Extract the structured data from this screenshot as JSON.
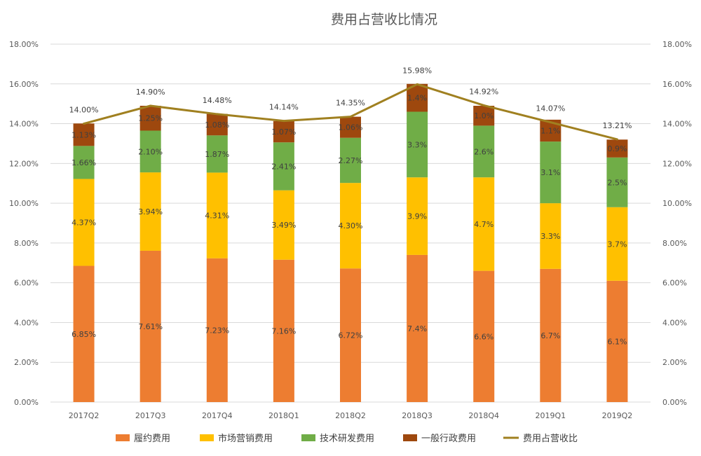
{
  "chart_data": {
    "type": "bar",
    "stacked": true,
    "title": "费用占营收比情况",
    "categories": [
      "2017Q2",
      "2017Q3",
      "2017Q4",
      "2018Q1",
      "2018Q2",
      "2018Q3",
      "2018Q4",
      "2019Q1",
      "2019Q2"
    ],
    "ylim": [
      0,
      18
    ],
    "y_ticks": [
      "0.00%",
      "2.00%",
      "4.00%",
      "6.00%",
      "8.00%",
      "10.00%",
      "12.00%",
      "14.00%",
      "16.00%",
      "18.00%"
    ],
    "y_tick_values": [
      0,
      2,
      4,
      6,
      8,
      10,
      12,
      14,
      16,
      18
    ],
    "grid": true,
    "legend_position": "bottom",
    "series": [
      {
        "name": "履约费用",
        "color": "#ED7D31",
        "values": [
          6.85,
          7.61,
          7.23,
          7.16,
          6.72,
          7.4,
          6.6,
          6.7,
          6.1
        ],
        "labels": [
          "6.85%",
          "7.61%",
          "7.23%",
          "7.16%",
          "6.72%",
          "7.4%",
          "6.6%",
          "6.7%",
          "6.1%"
        ]
      },
      {
        "name": "市场营销费用",
        "color": "#FFC000",
        "values": [
          4.37,
          3.94,
          4.31,
          3.49,
          4.3,
          3.9,
          4.7,
          3.3,
          3.7
        ],
        "labels": [
          "4.37%",
          "3.94%",
          "4.31%",
          "3.49%",
          "4.30%",
          "3.9%",
          "4.7%",
          "3.3%",
          "3.7%"
        ]
      },
      {
        "name": "技术研发费用",
        "color": "#70AD47",
        "values": [
          1.66,
          2.1,
          1.87,
          2.41,
          2.27,
          3.3,
          2.6,
          3.1,
          2.5
        ],
        "labels": [
          "1.66%",
          "2.10%",
          "1.87%",
          "2.41%",
          "2.27%",
          "3.3%",
          "2.6%",
          "3.1%",
          "2.5%"
        ]
      },
      {
        "name": "一般行政费用",
        "color": "#9E480E",
        "values": [
          1.13,
          1.25,
          1.08,
          1.07,
          1.06,
          1.4,
          1.0,
          1.1,
          0.9
        ],
        "labels": [
          "1.13%",
          "1.25%",
          "1.08%",
          "1.07%",
          "1.06%",
          "1.4%",
          "1.0%",
          "1.1%",
          "0.9%"
        ]
      }
    ],
    "line": {
      "name": "费用占营收比",
      "color": "#A08020",
      "values": [
        14.0,
        14.9,
        14.48,
        14.14,
        14.35,
        15.98,
        14.92,
        14.07,
        13.21
      ],
      "labels": [
        "14.00%",
        "14.90%",
        "14.48%",
        "14.14%",
        "14.35%",
        "15.98%",
        "14.92%",
        "14.07%",
        "13.21%"
      ]
    }
  }
}
